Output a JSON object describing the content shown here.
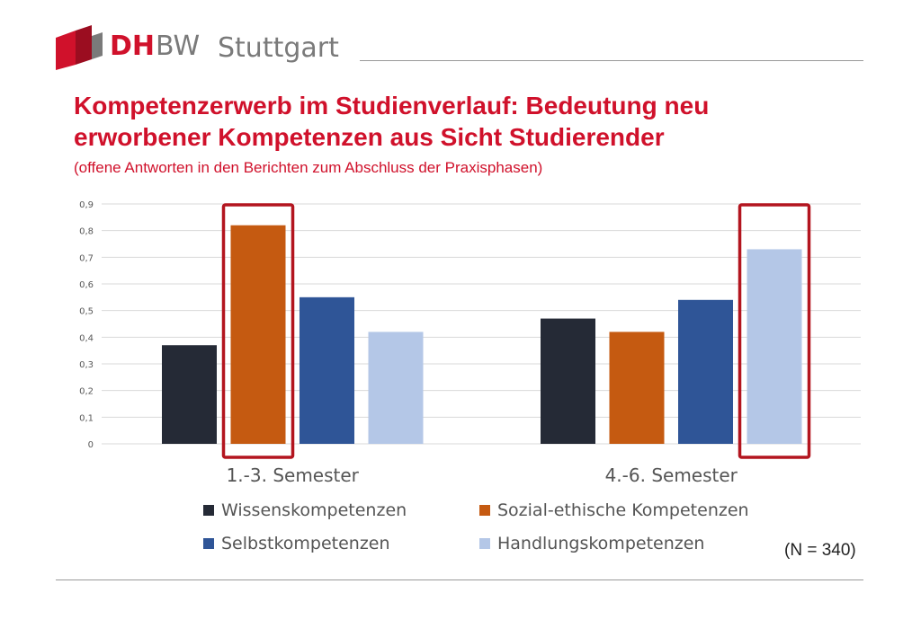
{
  "header": {
    "logo_dh": "DH",
    "logo_bw": "BW",
    "logo_city": "Stuttgart"
  },
  "title_line1": "Kompetenzerwerb im Studienverlauf: Bedeutung neu",
  "title_line2": "erworbener Kompetenzen aus Sicht Studierender",
  "subtitle": "(offene Antworten in den Berichten zum Abschluss der Praxisphasen)",
  "n_note": "(N = 340)",
  "colors": {
    "brand_red": "#d0112b",
    "highlight_red": "#b3151f"
  },
  "chart_data": {
    "type": "bar",
    "categories": [
      "1.-3. Semester",
      "4.-6. Semester"
    ],
    "series": [
      {
        "name": "Wissenskompetenzen",
        "values": [
          0.37,
          0.47
        ],
        "color": "#252a36"
      },
      {
        "name": "Sozial-ethische Kompetenzen",
        "values": [
          0.82,
          0.42
        ],
        "color": "#c55a11"
      },
      {
        "name": "Selbstkompetenzen",
        "values": [
          0.55,
          0.54
        ],
        "color": "#2f5597"
      },
      {
        "name": "Handlungskompetenzen",
        "values": [
          0.42,
          0.73
        ],
        "color": "#b4c7e7"
      }
    ],
    "yticks": [
      "0",
      "0,1",
      "0,2",
      "0,3",
      "0,4",
      "0,5",
      "0,6",
      "0,7",
      "0,8",
      "0,9"
    ],
    "ylim": [
      0,
      0.9
    ],
    "grid": true,
    "legend_position": "bottom",
    "highlighted": [
      {
        "category": 0,
        "series": 1
      },
      {
        "category": 1,
        "series": 3
      }
    ]
  }
}
